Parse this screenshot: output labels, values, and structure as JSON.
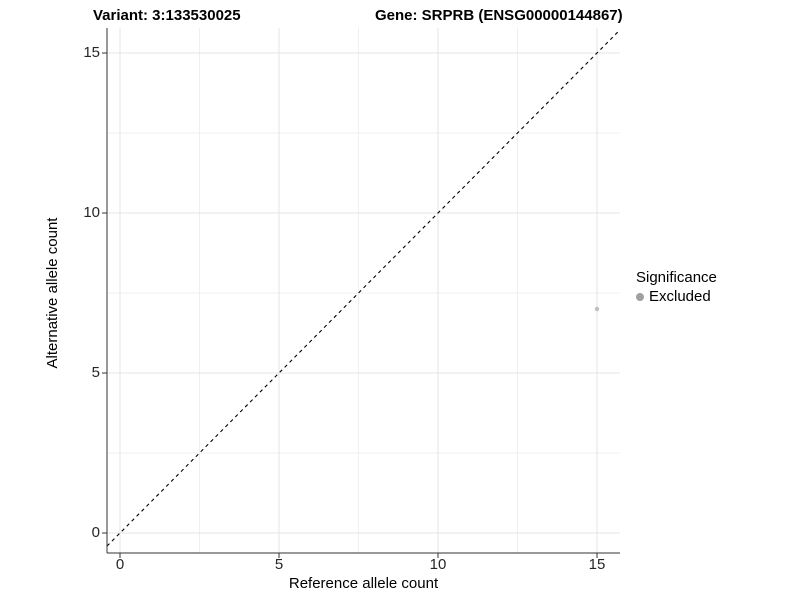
{
  "figure": {
    "title_left": "Variant: 3:133530025",
    "title_right": "Gene: SRPRB (ENSG00000144867)"
  },
  "chart_data": {
    "type": "scatter",
    "title": "Variant: 3:133530025   Gene: SRPRB (ENSG00000144867)",
    "xlabel": "Reference allele count",
    "ylabel": "Alternative allele count",
    "xlim": [
      -0.41,
      15.72
    ],
    "ylim": [
      -0.63,
      15.78
    ],
    "x_ticks": [
      0,
      5,
      10,
      15
    ],
    "y_ticks": [
      0,
      5,
      10,
      15
    ],
    "grid": "major and minor gridlines on, light gray",
    "series": [
      {
        "name": "Excluded",
        "points": [
          {
            "x": 15,
            "y": 7
          }
        ],
        "color": "#bfbfbf",
        "point_radius_px": 2.2
      }
    ],
    "reference_line": {
      "kind": "identity y=x",
      "style": "dashed",
      "color": "#000000"
    },
    "legend": {
      "title": "Significance",
      "position": "right",
      "items": [
        {
          "label": "Excluded",
          "color": "#a0a0a0"
        }
      ]
    }
  },
  "colors": {
    "background": "#ffffff",
    "grid_major": "#e4e4e4",
    "grid_minor": "#efefef",
    "axis_line": "#333333",
    "tick_mark": "#333333",
    "tick_label": "#262626",
    "point": "#bfbfbf",
    "legend_dot": "#a0a0a0",
    "dashed_line": "#000000"
  }
}
